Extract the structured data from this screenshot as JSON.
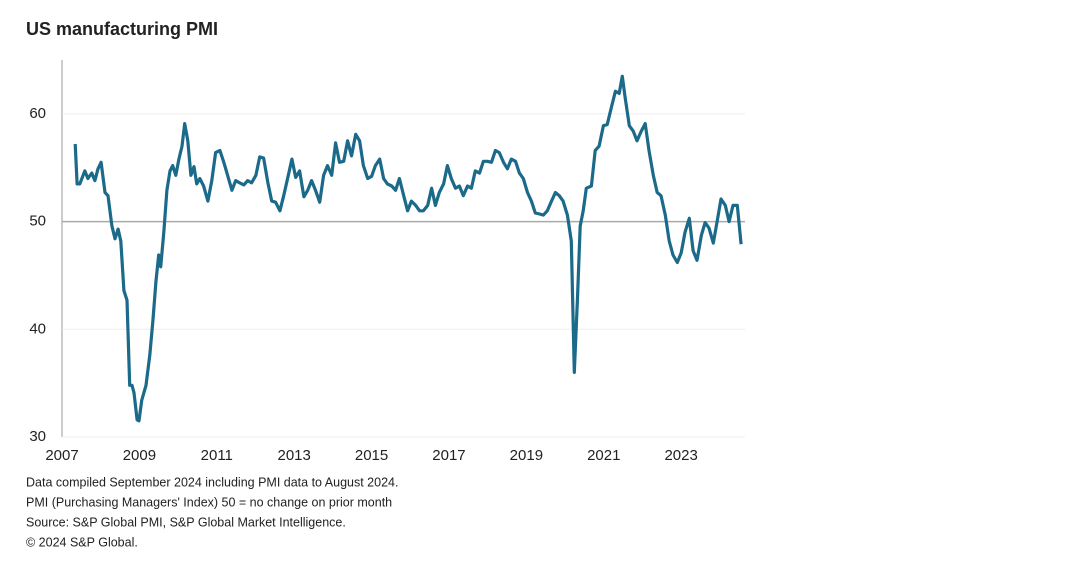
{
  "chart_data": {
    "type": "line",
    "title": "US manufacturing PMI",
    "notes": [
      "Data compiled September 2024 including PMI data to August 2024.",
      "PMI (Purchasing Managers' Index) 50 = no change on prior month",
      "Source: S&P Global PMI, S&P Global Market Intelligence.",
      "© 2024 S&P Global."
    ],
    "xlim": [
      2007,
      2024.65
    ],
    "xticks": [
      2007,
      2009,
      2011,
      2013,
      2015,
      2017,
      2019,
      2021,
      2023
    ],
    "ylim": [
      30,
      65
    ],
    "yticks": [
      30,
      40,
      50,
      60
    ],
    "grid": true,
    "reference_line": 50,
    "series": [
      {
        "name": "US manufacturing PMI",
        "color": "#1b6a8a",
        "x": [
          2007.34,
          2007.39,
          2007.46,
          2007.59,
          2007.67,
          2007.77,
          2007.85,
          2007.93,
          2008.01,
          2008.11,
          2008.19,
          2008.29,
          2008.37,
          2008.45,
          2008.52,
          2008.6,
          2008.68,
          2008.75,
          2008.81,
          2008.86,
          2008.94,
          2008.99,
          2009.06,
          2009.17,
          2009.27,
          2009.35,
          2009.43,
          2009.5,
          2009.55,
          2009.63,
          2009.71,
          2009.79,
          2009.86,
          2009.94,
          2010.02,
          2010.1,
          2010.17,
          2010.25,
          2010.33,
          2010.41,
          2010.48,
          2010.56,
          2010.66,
          2010.77,
          2010.87,
          2010.97,
          2011.08,
          2011.18,
          2011.28,
          2011.39,
          2011.49,
          2011.59,
          2011.7,
          2011.8,
          2011.9,
          2012.01,
          2012.11,
          2012.21,
          2012.32,
          2012.42,
          2012.52,
          2012.63,
          2012.73,
          2012.83,
          2012.94,
          2013.04,
          2013.14,
          2013.25,
          2013.35,
          2013.45,
          2013.55,
          2013.66,
          2013.76,
          2013.86,
          2013.97,
          2014.07,
          2014.17,
          2014.28,
          2014.38,
          2014.48,
          2014.59,
          2014.69,
          2014.79,
          2014.9,
          2015.0,
          2015.1,
          2015.21,
          2015.31,
          2015.41,
          2015.52,
          2015.62,
          2015.72,
          2015.83,
          2015.93,
          2016.03,
          2016.14,
          2016.24,
          2016.34,
          2016.45,
          2016.55,
          2016.65,
          2016.75,
          2016.86,
          2016.96,
          2017.06,
          2017.17,
          2017.27,
          2017.37,
          2017.48,
          2017.58,
          2017.68,
          2017.79,
          2017.89,
          2017.99,
          2018.1,
          2018.2,
          2018.3,
          2018.41,
          2018.51,
          2018.61,
          2018.72,
          2018.82,
          2018.92,
          2019.03,
          2019.13,
          2019.23,
          2019.34,
          2019.44,
          2019.54,
          2019.65,
          2019.75,
          2019.85,
          2019.95,
          2020.06,
          2020.16,
          2020.24,
          2020.32,
          2020.39,
          2020.47,
          2020.55,
          2020.68,
          2020.78,
          2020.88,
          2020.99,
          2021.09,
          2021.19,
          2021.3,
          2021.4,
          2021.48,
          2021.55,
          2021.66,
          2021.76,
          2021.86,
          2021.97,
          2022.07,
          2022.17,
          2022.28,
          2022.38,
          2022.48,
          2022.59,
          2022.69,
          2022.79,
          2022.9,
          2023.0,
          2023.1,
          2023.21,
          2023.31,
          2023.41,
          2023.52,
          2023.62,
          2023.72,
          2023.83,
          2023.93,
          2024.03,
          2024.14,
          2024.24,
          2024.34,
          2024.45,
          2024.55
        ],
        "values": [
          57.2,
          53.5,
          53.5,
          54.7,
          54.0,
          54.5,
          53.8,
          54.9,
          55.5,
          52.7,
          52.4,
          49.6,
          48.4,
          49.3,
          48.2,
          43.6,
          42.7,
          34.8,
          34.8,
          34.1,
          31.6,
          31.5,
          33.4,
          34.8,
          37.6,
          40.8,
          44.5,
          46.9,
          45.8,
          49.0,
          52.9,
          54.7,
          55.2,
          54.3,
          55.8,
          57.0,
          59.1,
          57.5,
          54.3,
          55.1,
          53.5,
          54.0,
          53.3,
          51.9,
          53.8,
          56.4,
          56.6,
          55.5,
          54.3,
          52.9,
          53.8,
          53.6,
          53.4,
          53.8,
          53.6,
          54.3,
          56.0,
          55.9,
          53.6,
          51.9,
          51.8,
          51.0,
          52.4,
          54.0,
          55.8,
          54.1,
          54.7,
          52.3,
          52.9,
          53.8,
          52.9,
          51.8,
          54.3,
          55.2,
          54.3,
          57.3,
          55.5,
          55.6,
          57.5,
          56.1,
          58.1,
          57.5,
          55.2,
          54.0,
          54.2,
          55.2,
          55.8,
          54.0,
          53.5,
          53.3,
          52.9,
          54.0,
          52.4,
          51.0,
          51.9,
          51.5,
          51.0,
          51.0,
          51.5,
          53.1,
          51.5,
          52.7,
          53.5,
          55.2,
          54.0,
          53.1,
          53.3,
          52.4,
          53.3,
          53.1,
          54.7,
          54.5,
          55.6,
          55.6,
          55.5,
          56.6,
          56.4,
          55.5,
          54.9,
          55.8,
          55.6,
          54.5,
          54.0,
          52.7,
          51.9,
          50.8,
          50.7,
          50.6,
          51.0,
          51.9,
          52.7,
          52.4,
          51.9,
          50.6,
          48.2,
          36.0,
          42.7,
          49.6,
          51.0,
          53.1,
          53.3,
          56.6,
          57.0,
          58.9,
          59.0,
          60.5,
          62.1,
          61.9,
          63.5,
          61.6,
          58.9,
          58.4,
          57.5,
          58.4,
          59.1,
          56.6,
          54.3,
          52.7,
          52.4,
          50.6,
          48.2,
          46.9,
          46.2,
          47.1,
          49.0,
          50.3,
          47.3,
          46.4,
          48.7,
          49.9,
          49.4,
          48.0,
          50.0,
          52.1,
          51.5,
          50.0,
          51.5,
          51.5,
          47.9
        ]
      }
    ]
  }
}
